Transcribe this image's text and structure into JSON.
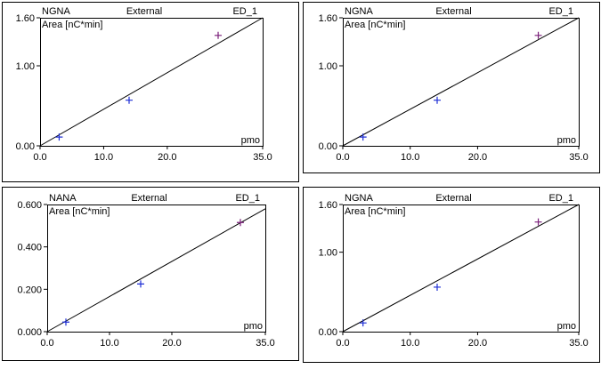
{
  "colors": {
    "frame": "#000000",
    "marker_blue": "#1f2fd6",
    "marker_purple": "#7a1f7a"
  },
  "chart_data": [
    {
      "type": "scatter",
      "analyte": "NGNA",
      "mode": "External",
      "detector": "ED_1",
      "ylabel": "Area  [nC*min]",
      "xlabel": "pmo",
      "xlim": [
        0,
        35
      ],
      "ylim": [
        0,
        1.6
      ],
      "x_ticks": [
        "0.0",
        "10.0",
        "20.0",
        "35.0"
      ],
      "x_tick_values": [
        0,
        10,
        20,
        35
      ],
      "y_ticks": [
        "0.00",
        "1.00",
        "1.60"
      ],
      "y_tick_values": [
        0,
        1,
        1.6
      ],
      "fit_line": [
        [
          0,
          0
        ],
        [
          35,
          1.6
        ]
      ],
      "points": [
        {
          "x": 3,
          "y": 0.11,
          "color": "#1f2fd6"
        },
        {
          "x": 14,
          "y": 0.57,
          "color": "#1f2fd6"
        },
        {
          "x": 28,
          "y": 1.38,
          "color": "#7a1f7a"
        }
      ]
    },
    {
      "type": "scatter",
      "analyte": "NGNA",
      "mode": "External",
      "detector": "ED_1",
      "ylabel": "Area  [nC*min]",
      "xlabel": "pmo",
      "xlim": [
        0,
        35
      ],
      "ylim": [
        0,
        1.6
      ],
      "x_ticks": [
        "0.0",
        "10.0",
        "20.0",
        "35.0"
      ],
      "x_tick_values": [
        0,
        10,
        20,
        35
      ],
      "y_ticks": [
        "0.00",
        "1.00",
        "1.60"
      ],
      "y_tick_values": [
        0,
        1,
        1.6
      ],
      "fit_line": [
        [
          0,
          0
        ],
        [
          35,
          1.6
        ]
      ],
      "points": [
        {
          "x": 3,
          "y": 0.11,
          "color": "#1f2fd6"
        },
        {
          "x": 14,
          "y": 0.57,
          "color": "#1f2fd6"
        },
        {
          "x": 29,
          "y": 1.38,
          "color": "#7a1f7a"
        }
      ]
    },
    {
      "type": "scatter",
      "analyte": "NANA",
      "mode": "External",
      "detector": "ED_1",
      "ylabel": "Area  [nC*min]",
      "xlabel": "pmo",
      "xlim": [
        0,
        35
      ],
      "ylim": [
        0,
        0.6
      ],
      "x_ticks": [
        "0.0",
        "10.0",
        "20.0",
        "35.0"
      ],
      "x_tick_values": [
        0,
        10,
        20,
        35
      ],
      "y_ticks": [
        "0.000",
        "0.200",
        "0.400",
        "0.600"
      ],
      "y_tick_values": [
        0,
        0.2,
        0.4,
        0.6
      ],
      "fit_line": [
        [
          0,
          0
        ],
        [
          35,
          0.58
        ]
      ],
      "points": [
        {
          "x": 3,
          "y": 0.045,
          "color": "#1f2fd6"
        },
        {
          "x": 15,
          "y": 0.225,
          "color": "#1f2fd6"
        },
        {
          "x": 31,
          "y": 0.515,
          "color": "#7a1f7a"
        }
      ]
    },
    {
      "type": "scatter",
      "analyte": "NGNA",
      "mode": "External",
      "detector": "ED_1",
      "ylabel": "Area  [nC*min]",
      "xlabel": "pmo",
      "xlim": [
        0,
        35
      ],
      "ylim": [
        0,
        1.6
      ],
      "x_ticks": [
        "0.0",
        "10.0",
        "20.0",
        "35.0"
      ],
      "x_tick_values": [
        0,
        10,
        20,
        35
      ],
      "y_ticks": [
        "0.00",
        "1.00",
        "1.60"
      ],
      "y_tick_values": [
        0,
        1,
        1.6
      ],
      "fit_line": [
        [
          0,
          0
        ],
        [
          35,
          1.6
        ]
      ],
      "points": [
        {
          "x": 3,
          "y": 0.11,
          "color": "#1f2fd6"
        },
        {
          "x": 14,
          "y": 0.56,
          "color": "#1f2fd6"
        },
        {
          "x": 29,
          "y": 1.38,
          "color": "#7a1f7a"
        }
      ]
    }
  ]
}
